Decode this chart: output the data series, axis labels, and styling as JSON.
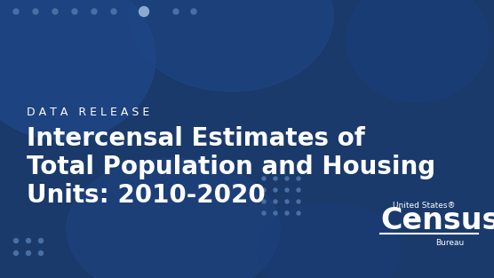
{
  "bg_color": "#1a3a6b",
  "blob_color1": "#1e4585",
  "blob_color2": "#1b3d7a",
  "dot_color": "#4a6fa5",
  "dot_color_large": "#8aaad0",
  "text_color": "#ffffff",
  "label_text": "DATA RELEASE",
  "title_line1": "Intercensal Estimates of",
  "title_line2": "Total Population and Housing",
  "title_line3": "Units: 2010-2020",
  "census_text1": "United States®",
  "census_text2": "Census",
  "census_text3": "Bureau",
  "label_fontsize": 9,
  "title_fontsize": 20,
  "census_large_fontsize": 24,
  "census_small_fontsize": 6.5
}
